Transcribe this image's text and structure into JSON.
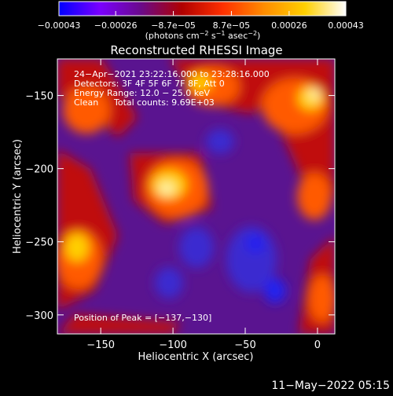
{
  "colorbar": {
    "tick_labels": [
      "−0.00043",
      "−0.00026",
      "−8.7e−05",
      "8.7e−05",
      "0.00026",
      "0.00043"
    ],
    "tick_values": [
      -0.00043,
      -0.00026,
      -8.7e-05,
      8.7e-05,
      0.00026,
      0.00043
    ],
    "range": [
      -0.00043,
      0.00043
    ],
    "units_prefix": "(photons cm",
    "units_exp1": "−2",
    "units_mid": " s",
    "units_exp2": "−1",
    "units_mid2": " asec",
    "units_exp3": "−2",
    "units_suffix": ")",
    "gradient_colors": [
      "#0000ff",
      "#7a00ff",
      "#6a0a8a",
      "#b00000",
      "#ff3000",
      "#ff8c00",
      "#ffd000",
      "#ffffff"
    ]
  },
  "chart_data": {
    "type": "heatmap",
    "title": "Reconstructed RHESSI Image",
    "xlabel": "Heliocentric X (arcsec)",
    "ylabel": "Heliocentric Y (arcsec)",
    "xlim": [
      -180,
      12
    ],
    "ylim": [
      -313,
      -125
    ],
    "x_ticks": [
      -150,
      -100,
      -50,
      0
    ],
    "x_tick_labels": [
      "−150",
      "−100",
      "−50",
      "0"
    ],
    "y_ticks": [
      -150,
      -200,
      -250,
      -300
    ],
    "y_tick_labels": [
      "−150",
      "−200",
      "−250",
      "−300"
    ],
    "annotations": [
      "24−Apr−2021 23:22:16.000 to 23:28:16.000",
      "Detectors: 3F 4F 5F 6F 7F 8F, Att 0",
      "Energy Range: 12.0 − 25.0 keV",
      "Clean",
      "Total counts: 9.69E+03"
    ],
    "peak_label": "Position of Peak = [−137,−130]",
    "peak_position": [
      -137,
      -130
    ]
  },
  "footer": {
    "timestamp": "11−May−2022 05:15"
  }
}
